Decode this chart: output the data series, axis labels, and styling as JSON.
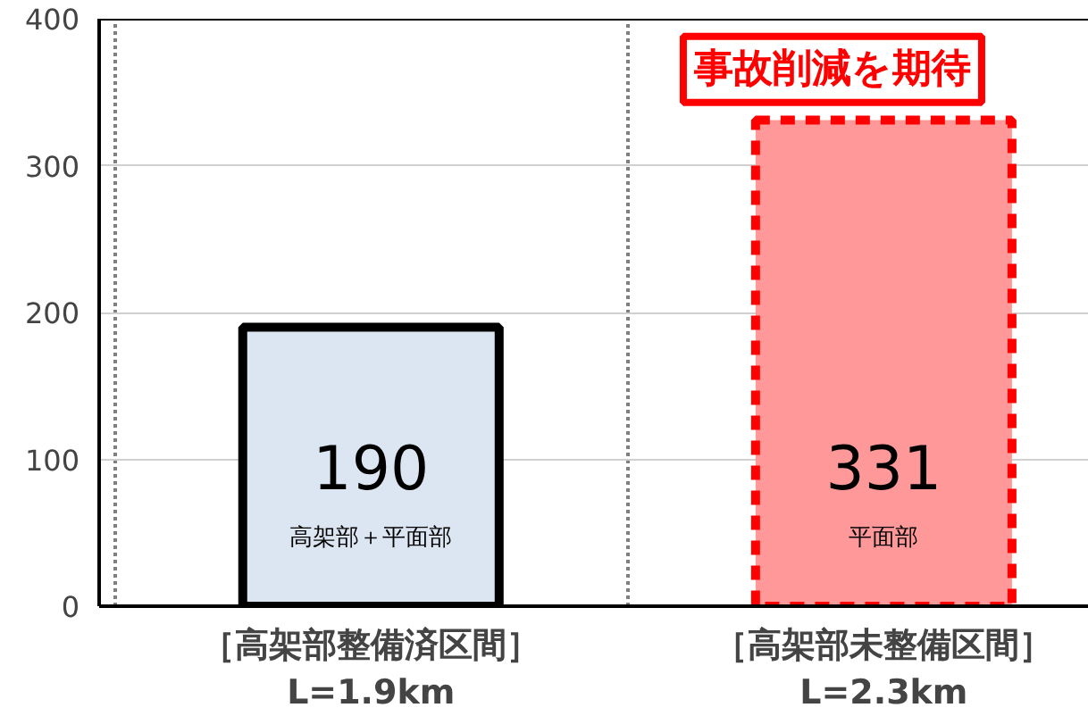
{
  "chart_data": {
    "type": "bar",
    "categories": [
      "［高架部整備済区間］\nL=1.9km",
      "［高架部未整備区間］\nL=2.3km"
    ],
    "series": [
      {
        "color": "#dce6f2",
        "values": [
          190,
          null
        ],
        "line_style": "solid"
      },
      {
        "color": "#ff9999",
        "values": [
          null,
          331
        ],
        "line_style": "dashed"
      }
    ],
    "ylim": [
      0,
      400
    ],
    "yticks": [
      0,
      100,
      200,
      300,
      400
    ],
    "grid": true,
    "data_labels": true,
    "annotations": [
      "事故削減を期待",
      "高架部＋平面部",
      "平面部"
    ]
  }
}
